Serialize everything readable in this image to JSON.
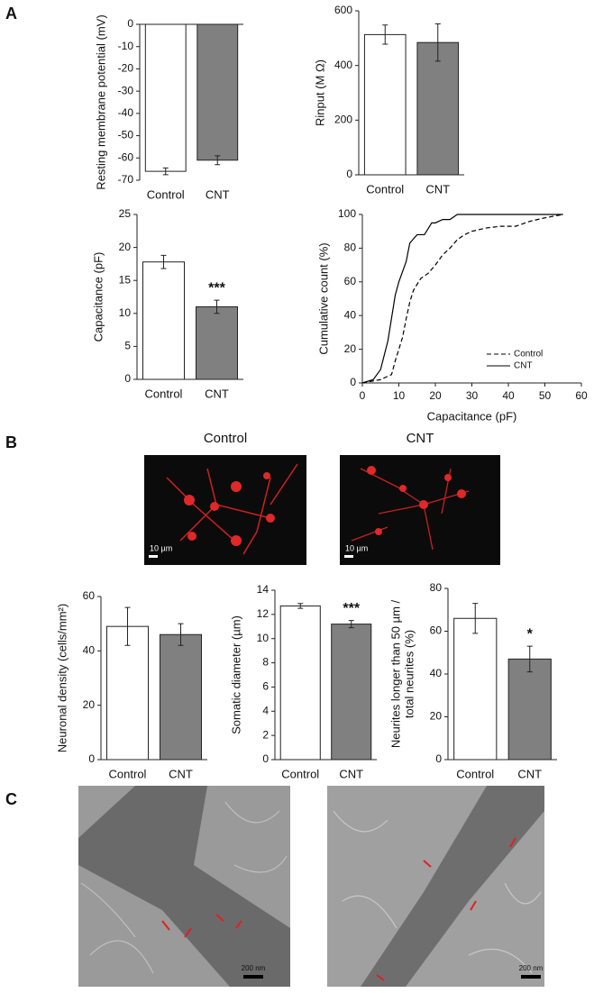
{
  "panel_labels": [
    "A",
    "B",
    "C"
  ],
  "micrographs": {
    "titles": [
      "Control",
      "CNT"
    ],
    "scale_bar": "10 µm"
  },
  "sem": {
    "scale_bar": "200 nm"
  },
  "chart_data": [
    {
      "type": "bar",
      "ylabel": "Resting membrane  potential (mV)",
      "categories": [
        "Control",
        "CNT"
      ],
      "values": [
        -66,
        -61
      ],
      "errors": [
        1.5,
        2
      ],
      "colors": [
        "#ffffff",
        "#808080"
      ],
      "ylim": [
        -70,
        0
      ],
      "yticks": [
        0,
        -10,
        -20,
        -30,
        -40,
        -50,
        -60,
        -70
      ]
    },
    {
      "type": "bar",
      "ylabel": "Rinput (M Ω)",
      "categories": [
        "Control",
        "CNT"
      ],
      "values": [
        513,
        484
      ],
      "errors": [
        35,
        68
      ],
      "colors": [
        "#ffffff",
        "#808080"
      ],
      "ylim": [
        0,
        600
      ],
      "yticks": [
        0,
        200,
        400,
        600
      ]
    },
    {
      "type": "bar",
      "ylabel": "Capacitance (pF)",
      "annotation": "***",
      "categories": [
        "Control",
        "CNT"
      ],
      "values": [
        17.8,
        11.0
      ],
      "errors": [
        1.0,
        1.0
      ],
      "colors": [
        "#ffffff",
        "#808080"
      ],
      "ylim": [
        0,
        25
      ],
      "yticks": [
        0,
        5,
        10,
        15,
        20,
        25
      ]
    },
    {
      "type": "line",
      "xlabel": "Capacitance (pF)",
      "ylabel": "Cumulative count (%)",
      "legend": "lower right",
      "xlim": [
        0,
        60
      ],
      "xticks": [
        0,
        10,
        20,
        30,
        40,
        50,
        60
      ],
      "ylim": [
        0,
        100
      ],
      "yticks": [
        0,
        20,
        40,
        60,
        80,
        100
      ],
      "series": [
        {
          "name": "Control",
          "color": "#000000",
          "line_style": "dashed",
          "x": [
            0,
            5,
            8,
            9,
            10,
            11,
            12,
            13,
            14,
            16,
            18,
            20,
            22,
            24,
            26,
            28,
            30,
            34,
            38,
            42,
            46,
            50,
            55
          ],
          "values": [
            0,
            2,
            5,
            13,
            20,
            27,
            38,
            48,
            55,
            62,
            65,
            70,
            76,
            80,
            85,
            88,
            90,
            92,
            93,
            93,
            96,
            98,
            100
          ]
        },
        {
          "name": "CNT",
          "color": "#000000",
          "line_style": "solid",
          "x": [
            0,
            3,
            5,
            7,
            9,
            10,
            12,
            13,
            15,
            17,
            19,
            20,
            22,
            24,
            26,
            28,
            30,
            40,
            55
          ],
          "values": [
            0,
            2,
            8,
            25,
            52,
            60,
            72,
            83,
            88,
            88,
            95,
            95,
            97,
            97,
            100,
            100,
            100,
            100,
            100
          ]
        }
      ]
    },
    {
      "type": "bar",
      "ylabel": "Neuronal density (cells/mm²)",
      "categories": [
        "Control",
        "CNT"
      ],
      "values": [
        49,
        46
      ],
      "errors": [
        7,
        4
      ],
      "colors": [
        "#ffffff",
        "#808080"
      ],
      "ylim": [
        0,
        60
      ],
      "yticks": [
        0,
        20,
        40,
        60
      ]
    },
    {
      "type": "bar",
      "ylabel": "Somatic diameter  (µm)",
      "annotation": "***",
      "categories": [
        "Control",
        "CNT"
      ],
      "values": [
        12.7,
        11.2
      ],
      "errors": [
        0.2,
        0.3
      ],
      "colors": [
        "#ffffff",
        "#808080"
      ],
      "ylim": [
        0,
        14
      ],
      "yticks": [
        0,
        2,
        4,
        6,
        8,
        10,
        12,
        14
      ]
    },
    {
      "type": "bar",
      "ylabel": [
        "Neurites longer than 50  µm /",
        "total neurites (%)"
      ],
      "annotation": "*",
      "categories": [
        "Control",
        "CNT"
      ],
      "values": [
        66,
        47
      ],
      "errors": [
        7,
        6
      ],
      "colors": [
        "#ffffff",
        "#808080"
      ],
      "ylim": [
        0,
        80
      ],
      "yticks": [
        0,
        20,
        40,
        60,
        80
      ]
    }
  ]
}
